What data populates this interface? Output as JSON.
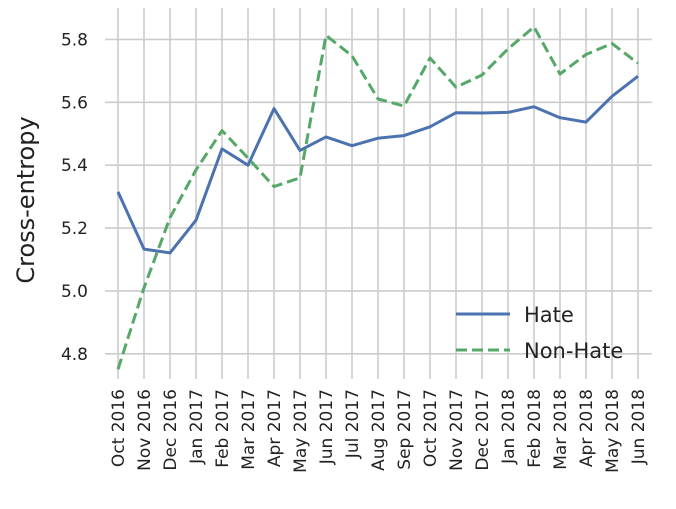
{
  "chart_data": {
    "type": "line",
    "categories": [
      "Oct 2016",
      "Nov 2016",
      "Dec 2016",
      "Jan 2017",
      "Feb 2017",
      "Mar 2017",
      "Apr 2017",
      "May 2017",
      "Jun 2017",
      "Jul 2017",
      "Aug 2017",
      "Sep 2017",
      "Oct 2017",
      "Nov 2017",
      "Dec 2017",
      "Jan 2018",
      "Feb 2018",
      "Mar 2018",
      "Apr 2018",
      "May 2018",
      "Jun 2018"
    ],
    "series": [
      {
        "name": "Hate",
        "color": "#4c72b0",
        "dash": "solid",
        "values": [
          5.315,
          5.133,
          5.121,
          5.225,
          5.452,
          5.4,
          5.58,
          5.447,
          5.49,
          5.462,
          5.486,
          5.494,
          5.522,
          5.567,
          5.566,
          5.568,
          5.586,
          5.551,
          5.537,
          5.619,
          5.683
        ]
      },
      {
        "name": "Non-Hate",
        "color": "#55a868",
        "dash": "dashed",
        "values": [
          4.751,
          5.01,
          5.233,
          5.385,
          5.51,
          5.423,
          5.332,
          5.36,
          5.813,
          5.748,
          5.611,
          5.588,
          5.741,
          5.648,
          5.687,
          5.77,
          5.84,
          5.69,
          5.752,
          5.787,
          5.724
        ]
      }
    ],
    "yticks": [
      4.8,
      5.0,
      5.2,
      5.4,
      5.6,
      5.8
    ],
    "ytick_labels": [
      "4.8",
      "5.0",
      "5.2",
      "5.4",
      "5.6",
      "5.8"
    ],
    "ylim": [
      4.72,
      5.9
    ],
    "ylabel": "Cross-entropy",
    "xlabel": "",
    "title": "",
    "grid": true,
    "legend_position": "lower-right"
  }
}
